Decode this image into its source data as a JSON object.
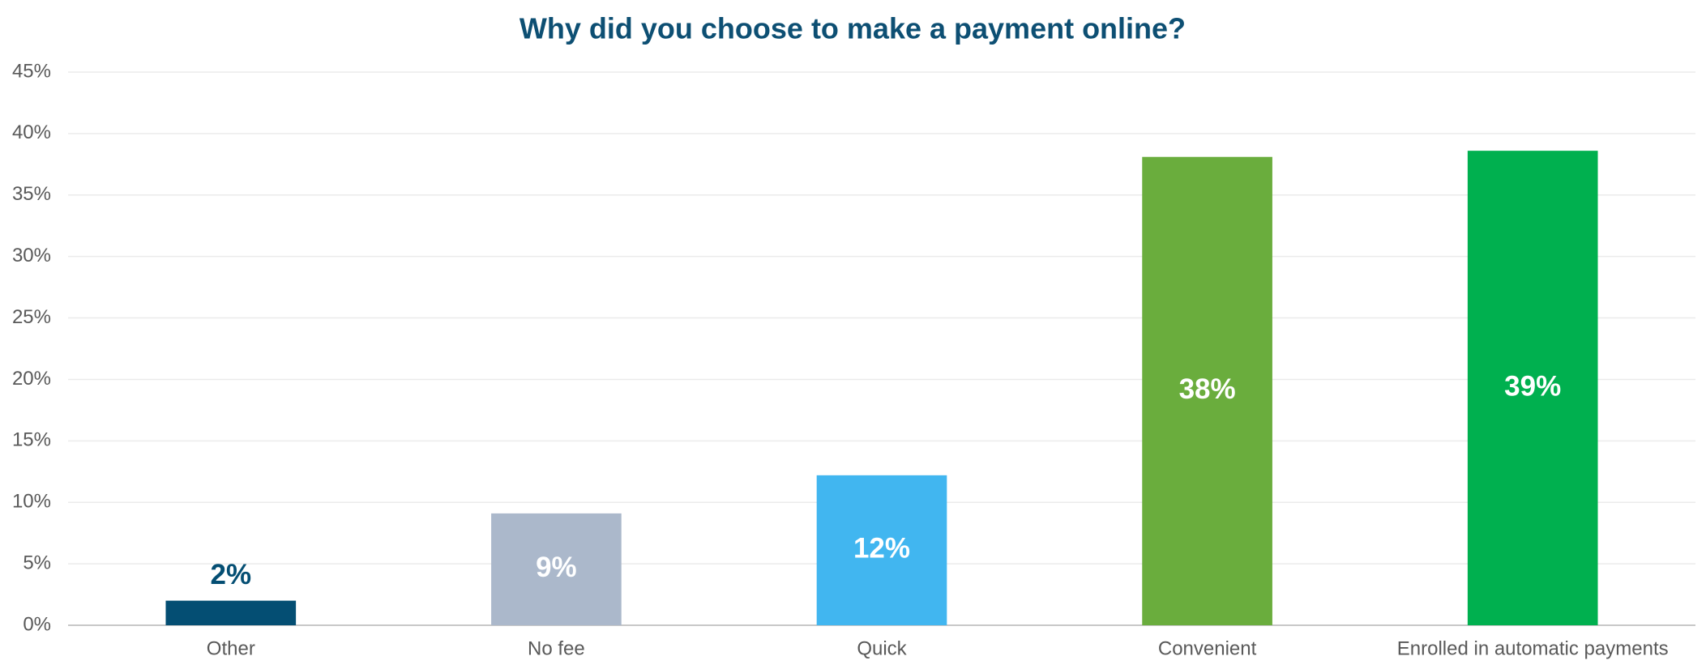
{
  "chart_data": {
    "type": "bar",
    "title": "Why did you choose to make a payment online?",
    "categories": [
      "Other",
      "No fee",
      "Quick",
      "Convenient",
      "Enrolled in automatic payments"
    ],
    "values": [
      2,
      9.1,
      12.2,
      38.1,
      38.6
    ],
    "value_labels": [
      "2%",
      "9%",
      "12%",
      "38%",
      "39%"
    ],
    "colors": [
      "#044e73",
      "#abb8cb",
      "#41b6f0",
      "#6aad3d",
      "#00b04f"
    ],
    "ylim": [
      0,
      45
    ],
    "yticks": [
      {
        "value": 0,
        "label": "0%"
      },
      {
        "value": 5,
        "label": "5%"
      },
      {
        "value": 10,
        "label": "10%"
      },
      {
        "value": 15,
        "label": "15%"
      },
      {
        "value": 20,
        "label": "20%"
      },
      {
        "value": 25,
        "label": "25%"
      },
      {
        "value": 30,
        "label": "30%"
      },
      {
        "value": 35,
        "label": "35%"
      },
      {
        "value": 40,
        "label": "40%"
      },
      {
        "value": 45,
        "label": "45%"
      }
    ],
    "grid": true
  }
}
